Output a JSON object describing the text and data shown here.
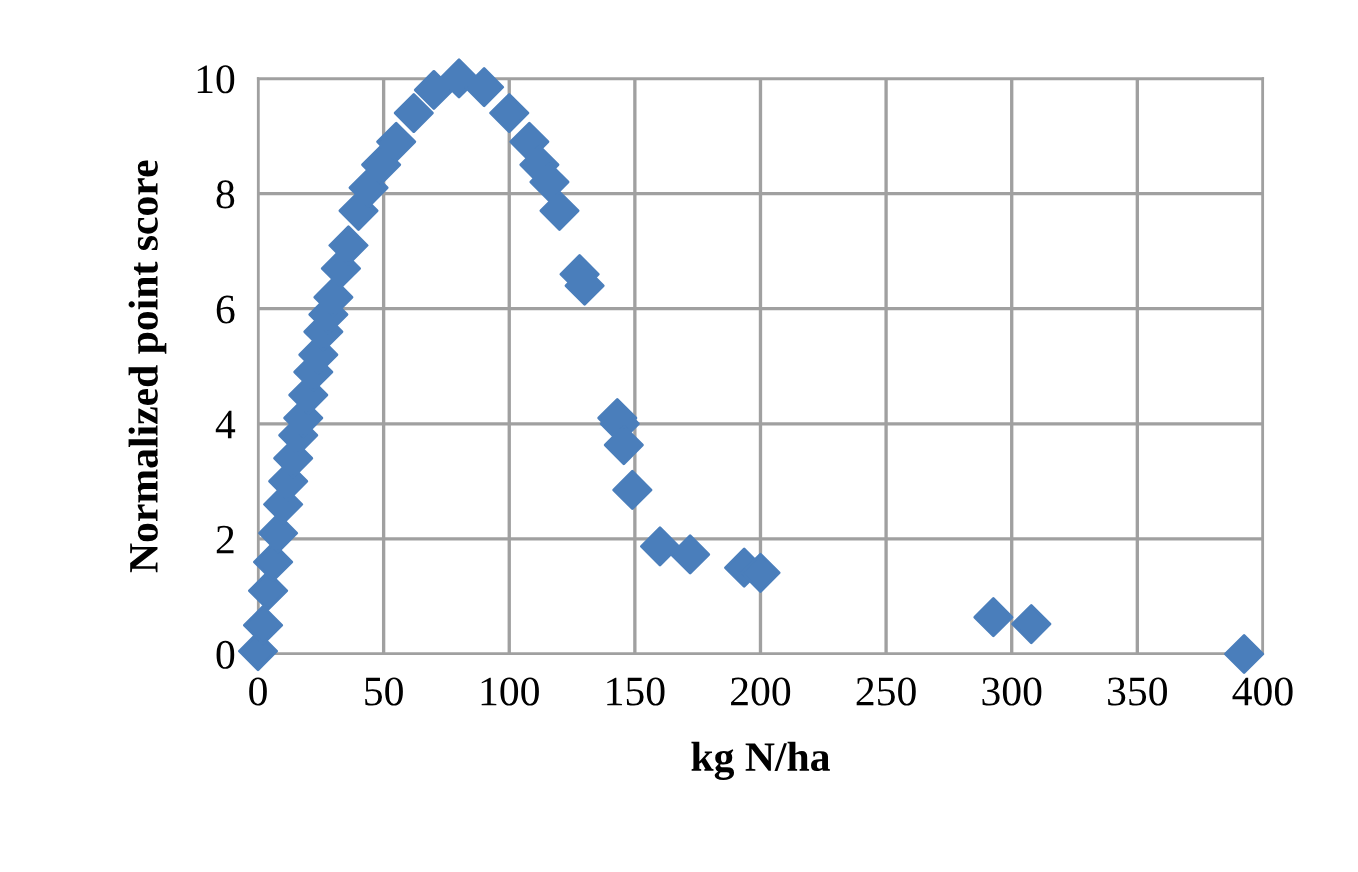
{
  "chart_data": {
    "type": "scatter",
    "xlabel": "kg N/ha",
    "ylabel": "Normalized point score",
    "marker": "diamond",
    "grid": true,
    "legend": false,
    "xlim": [
      0,
      400
    ],
    "xticks": [
      0,
      50,
      100,
      150,
      200,
      250,
      300,
      350,
      400
    ],
    "ylim": [
      0,
      10
    ],
    "yticks": [
      0,
      2,
      4,
      6,
      8,
      10
    ],
    "series": [
      {
        "color": "#4a7ebb",
        "x": [
          0,
          2,
          4,
          6,
          8,
          10,
          12,
          14,
          16,
          18,
          20,
          22,
          24,
          26,
          28,
          30,
          33,
          36,
          40,
          44,
          49,
          55,
          62,
          70,
          80,
          90,
          100,
          108,
          112,
          116,
          120,
          128,
          130,
          143,
          144,
          145.6,
          149,
          160,
          172,
          193.5,
          200,
          292.7,
          307.8,
          392.5
        ],
        "values": [
          0.05,
          0.5,
          1.1,
          1.6,
          2.1,
          2.6,
          3.0,
          3.4,
          3.8,
          4.1,
          4.5,
          4.9,
          5.2,
          5.6,
          5.9,
          6.2,
          6.7,
          7.1,
          7.7,
          8.1,
          8.5,
          8.9,
          9.4,
          9.8,
          10.0,
          9.85,
          9.4,
          8.9,
          8.5,
          8.2,
          7.7,
          6.6,
          6.4,
          4.1,
          4.0,
          3.63,
          2.85,
          1.87,
          1.73,
          1.5,
          1.41,
          0.64,
          0.52,
          0.0
        ]
      }
    ]
  }
}
